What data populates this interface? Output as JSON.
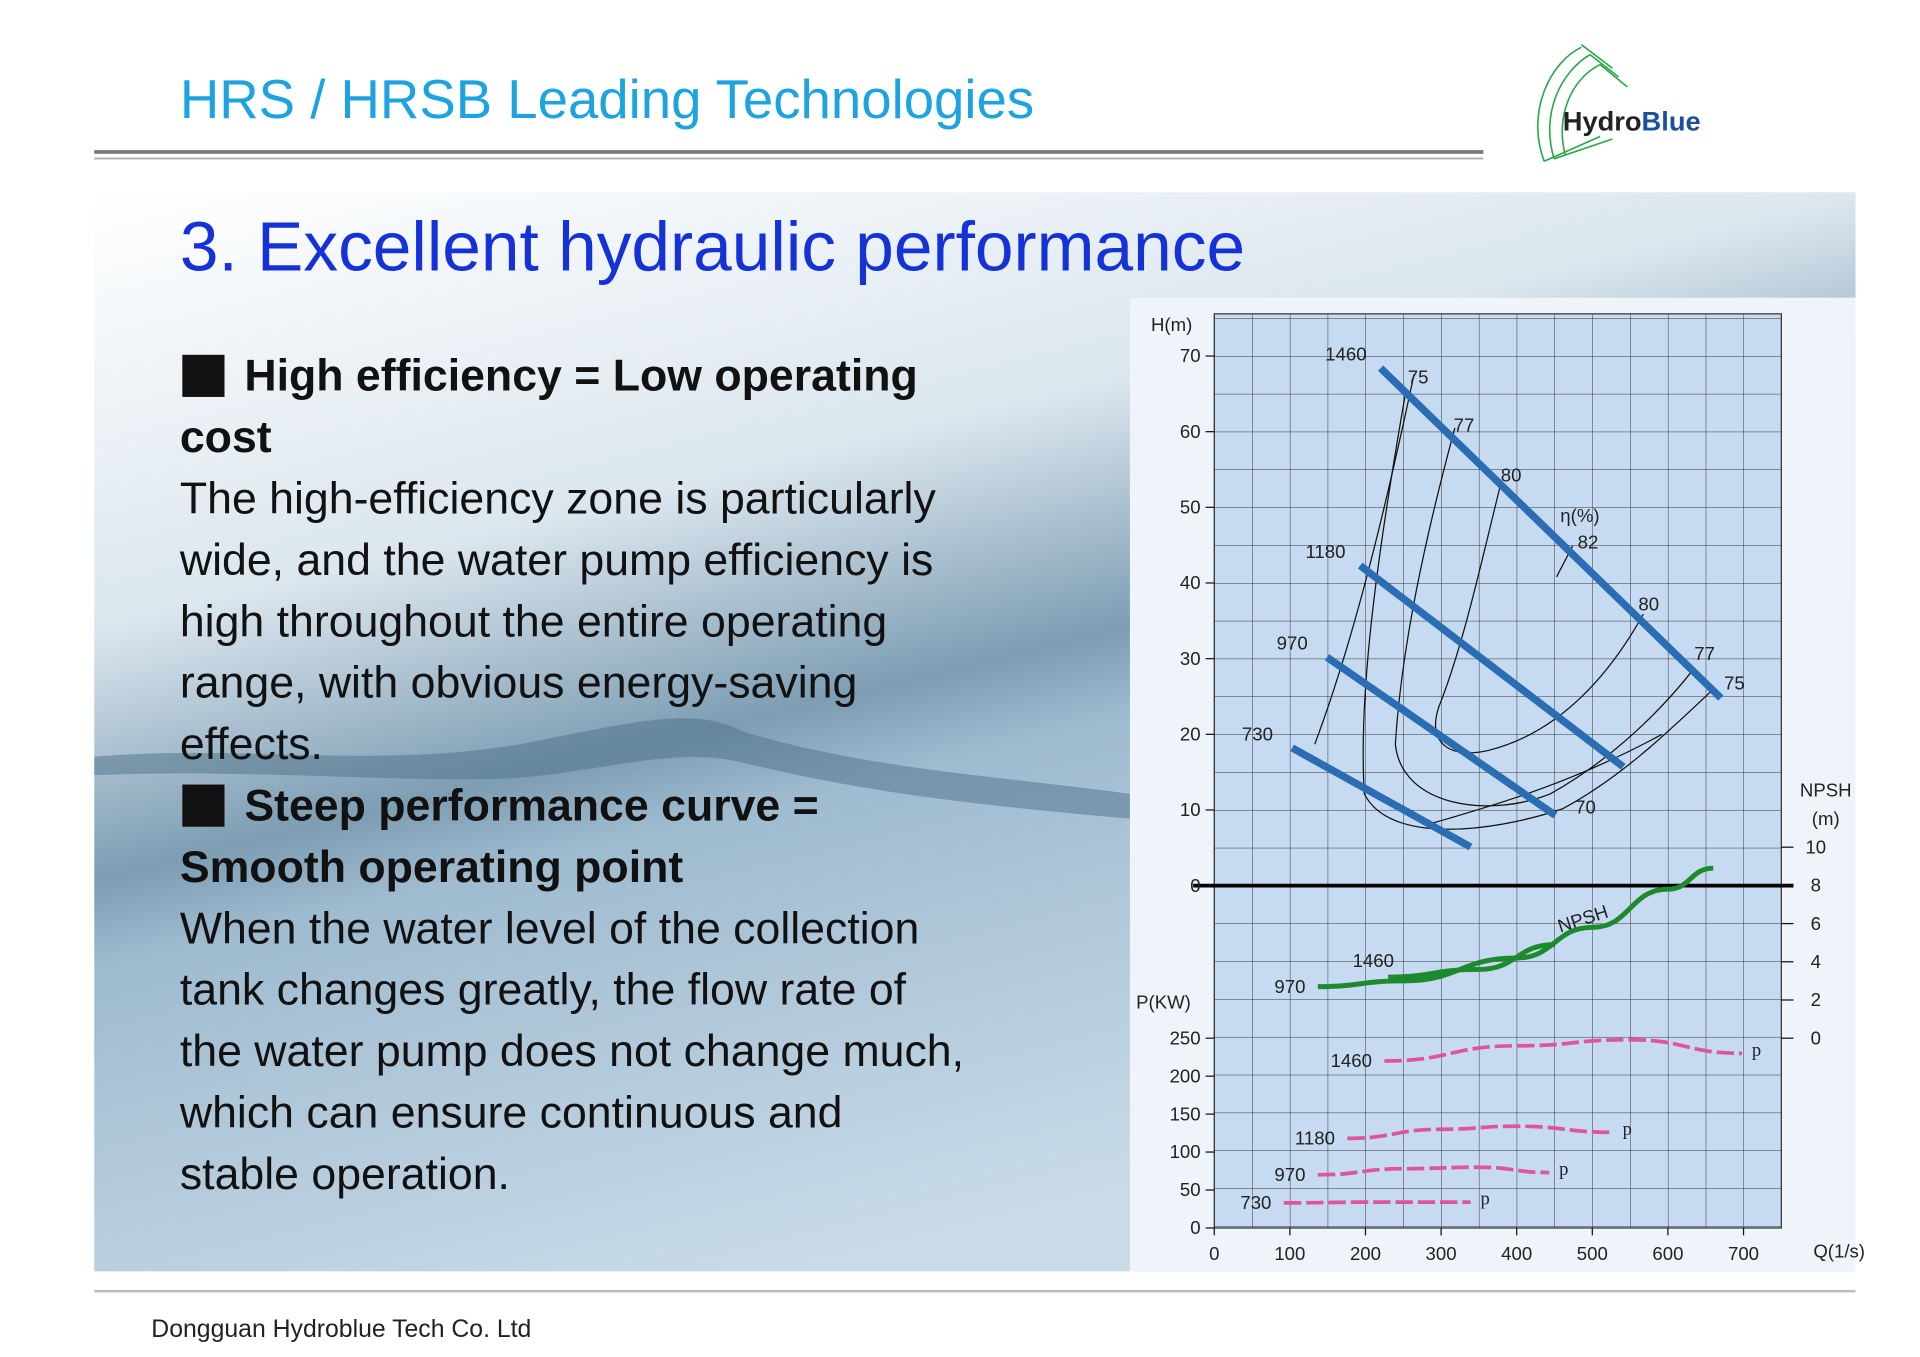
{
  "header": {
    "title": "HRS / HRSB Leading Technologies",
    "logo": [
      "Hydro",
      "Blue"
    ]
  },
  "slide": {
    "heading": "3. Excellent hydraulic performance",
    "sections": [
      {
        "title_lines": [
          "High efficiency = Low operating",
          "cost"
        ],
        "body_lines": [
          "The high-efficiency zone is particularly",
          "wide, and the water pump efficiency is",
          "high throughout the entire operating",
          "range, with obvious energy-saving",
          "effects."
        ]
      },
      {
        "title_lines": [
          "Steep performance curve =",
          "Smooth operating point"
        ],
        "body_lines": [
          "When the water level of the collection",
          "tank changes greatly, the flow rate of",
          "the water pump does not change much,",
          "which can ensure continuous and",
          "stable operation."
        ]
      }
    ]
  },
  "chart_data": {
    "type": "line",
    "x_label": "Q(1/s)",
    "xlim": [
      0,
      750
    ],
    "xticks": [
      0,
      100,
      200,
      300,
      400,
      500,
      600,
      700
    ],
    "h_label": "H(m)",
    "hlim": [
      0,
      75
    ],
    "hticks": [
      0,
      10,
      20,
      30,
      40,
      50,
      60,
      70
    ],
    "p_label": "P(KW)",
    "plim": [
      0,
      250
    ],
    "pticks": [
      0,
      50,
      100,
      150,
      200,
      250
    ],
    "npsh_label": [
      "NPSH",
      "(m)"
    ],
    "npshlim": [
      0,
      10
    ],
    "npshticks": [
      0,
      2,
      4,
      6,
      8,
      10
    ],
    "grid": true,
    "efficiency_label": "η(%)",
    "efficiency_values": [
      75,
      77,
      80,
      82,
      80,
      77,
      75,
      70
    ],
    "npsh_curve_label": "NPSH",
    "series": [
      {
        "name": "1460",
        "axis": "h",
        "color": "#2a6db3",
        "x": [
          220,
          670
        ],
        "values": [
          68.4,
          24.8
        ]
      },
      {
        "name": "1180",
        "axis": "h",
        "color": "#2a6db3",
        "x": [
          193,
          541
        ],
        "values": [
          42.3,
          15.7
        ]
      },
      {
        "name": "970",
        "axis": "h",
        "color": "#2a6db3",
        "x": [
          149,
          451
        ],
        "values": [
          30.2,
          9.3
        ]
      },
      {
        "name": "730",
        "axis": "h",
        "color": "#2a6db3",
        "x": [
          103,
          339
        ],
        "values": [
          18.2,
          5.1
        ]
      },
      {
        "name": "970",
        "axis": "npsh",
        "color": "#1d8a2e",
        "x": [
          137,
          250,
          400,
          500,
          600,
          660
        ],
        "values": [
          2.7,
          3.0,
          4.2,
          5.8,
          7.8,
          8.9
        ]
      },
      {
        "name": "1460",
        "axis": "npsh",
        "color": "#1d8a2e",
        "x": [
          230,
          350,
          450
        ],
        "values": [
          3.2,
          3.6,
          4.9
        ]
      },
      {
        "name": "1460",
        "axis": "p",
        "color": "#e0559a",
        "end_label": "p",
        "x": [
          225,
          400,
          550,
          698
        ],
        "values": [
          220,
          240,
          248,
          230
        ]
      },
      {
        "name": "1180",
        "axis": "p",
        "color": "#e0559a",
        "end_label": "p",
        "x": [
          176,
          300,
          400,
          527
        ],
        "values": [
          118,
          130,
          134,
          126
        ]
      },
      {
        "name": "970",
        "axis": "p",
        "color": "#e0559a",
        "end_label": "p",
        "x": [
          137,
          250,
          350,
          443
        ],
        "values": [
          70,
          78,
          80,
          73
        ]
      },
      {
        "name": "730",
        "axis": "p",
        "color": "#e0559a",
        "end_label": "p",
        "x": [
          92,
          200,
          339
        ],
        "values": [
          33,
          34,
          34
        ]
      }
    ]
  },
  "footer": "Dongguan Hydroblue Tech Co. Ltd"
}
